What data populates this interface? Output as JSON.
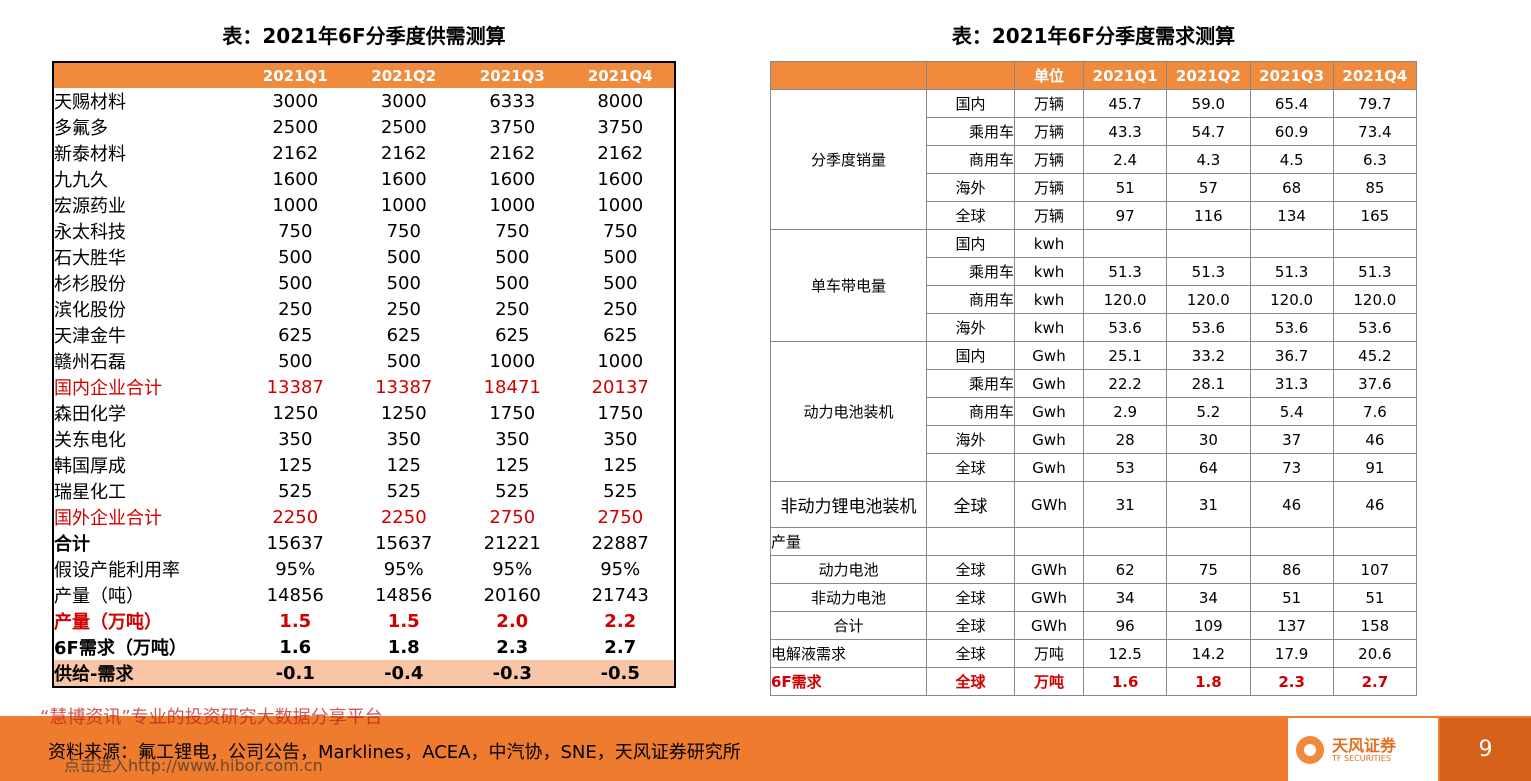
{
  "supply_table": {
    "title": "表：2021年6F分季度供需测算",
    "quarters": [
      "2021Q1",
      "2021Q2",
      "2021Q3",
      "2021Q4"
    ],
    "rows": [
      [
        "天赐材料",
        "3000",
        "3000",
        "6333",
        "8000"
      ],
      [
        "多氟多",
        "2500",
        "2500",
        "3750",
        "3750"
      ],
      [
        "新泰材料",
        "2162",
        "2162",
        "2162",
        "2162"
      ],
      [
        "九九久",
        "1600",
        "1600",
        "1600",
        "1600"
      ],
      [
        "宏源药业",
        "1000",
        "1000",
        "1000",
        "1000"
      ],
      [
        "永太科技",
        "750",
        "750",
        "750",
        "750"
      ],
      [
        "石大胜华",
        "500",
        "500",
        "500",
        "500"
      ],
      [
        "杉杉股份",
        "500",
        "500",
        "500",
        "500"
      ],
      [
        "滨化股份",
        "250",
        "250",
        "250",
        "250"
      ],
      [
        "天津金牛",
        "625",
        "625",
        "625",
        "625"
      ],
      [
        "赣州石磊",
        "500",
        "500",
        "1000",
        "1000"
      ],
      [
        "国内企业合计",
        "13387",
        "13387",
        "18471",
        "20137"
      ],
      [
        "森田化学",
        "1250",
        "1250",
        "1750",
        "1750"
      ],
      [
        "关东电化",
        "350",
        "350",
        "350",
        "350"
      ],
      [
        "韩国厚成",
        "125",
        "125",
        "125",
        "125"
      ],
      [
        "瑞星化工",
        "525",
        "525",
        "525",
        "525"
      ],
      [
        "国外企业合计",
        "2250",
        "2250",
        "2750",
        "2750"
      ],
      [
        "合计",
        "15637",
        "15637",
        "21221",
        "22887"
      ],
      [
        "假设产能利用率",
        "95%",
        "95%",
        "95%",
        "95%"
      ],
      [
        "产量（吨）",
        "14856",
        "14856",
        "20160",
        "21743"
      ],
      [
        "产量（万吨）",
        "1.5",
        "1.5",
        "2.0",
        "2.2"
      ],
      [
        "6F需求（万吨）",
        "1.6",
        "1.8",
        "2.3",
        "2.7"
      ],
      [
        "供给-需求",
        "-0.1",
        "-0.4",
        "-0.3",
        "-0.5"
      ]
    ]
  },
  "demand_table": {
    "title": "表：2021年6F分季度需求测算",
    "unit_header": "单位",
    "quarters": [
      "2021Q1",
      "2021Q2",
      "2021Q3",
      "2021Q4"
    ],
    "groups": [
      {
        "label": "分季度销量",
        "rows": [
          [
            "国内",
            "万辆",
            "45.7",
            "59.0",
            "65.4",
            "79.7"
          ],
          [
            "乘用车",
            "万辆",
            "43.3",
            "54.7",
            "60.9",
            "73.4"
          ],
          [
            "商用车",
            "万辆",
            "2.4",
            "4.3",
            "4.5",
            "6.3"
          ],
          [
            "海外",
            "万辆",
            "51",
            "57",
            "68",
            "85"
          ],
          [
            "全球",
            "万辆",
            "97",
            "116",
            "134",
            "165"
          ]
        ]
      },
      {
        "label": "单车带电量",
        "rows": [
          [
            "国内",
            "kwh",
            null,
            null,
            null,
            null
          ],
          [
            "乘用车",
            "kwh",
            "51.3",
            "51.3",
            "51.3",
            "51.3"
          ],
          [
            "商用车",
            "kwh",
            "120.0",
            "120.0",
            "120.0",
            "120.0"
          ],
          [
            "海外",
            "kwh",
            "53.6",
            "53.6",
            "53.6",
            "53.6"
          ]
        ]
      },
      {
        "label": "动力电池装机",
        "rows": [
          [
            "国内",
            "Gwh",
            "25.1",
            "33.2",
            "36.7",
            "45.2"
          ],
          [
            "乘用车",
            "Gwh",
            "22.2",
            "28.1",
            "31.3",
            "37.6"
          ],
          [
            "商用车",
            "Gwh",
            "2.9",
            "5.2",
            "5.4",
            "7.6"
          ],
          [
            "海外",
            "Gwh",
            "28",
            "30",
            "37",
            "46"
          ],
          [
            "全球",
            "Gwh",
            "53",
            "64",
            "73",
            "91"
          ]
        ]
      },
      {
        "label": "非动力锂电池装机",
        "rows": [
          [
            "全球",
            "GWh",
            "31",
            "31",
            "46",
            "46"
          ]
        ]
      }
    ],
    "rows": [
      [
        "产量",
        null,
        null,
        null,
        null,
        null,
        null
      ],
      [
        "动力电池",
        "全球",
        "GWh",
        "62",
        "75",
        "86",
        "107"
      ],
      [
        "非动力电池",
        "全球",
        "GWh",
        "34",
        "34",
        "51",
        "51"
      ],
      [
        "合计",
        "全球",
        "GWh",
        "96",
        "109",
        "137",
        "158"
      ],
      [
        "电解液需求",
        "全球",
        "万吨",
        "12.5",
        "14.2",
        "17.9",
        "20.6"
      ],
      [
        "6F需求",
        "全球",
        "万吨",
        "1.6",
        "1.8",
        "2.3",
        "2.7"
      ]
    ]
  },
  "footer": {
    "watermark": "“慧博资讯”专业的投资研究大数据分享平台",
    "source": "资料来源：氟工锂电，公司公告，Marklines，ACEA，中汽协，SNE，天风证券研究所",
    "link": "点击进入http://www.hibor.com.cn",
    "logo": "天风证券",
    "logo_en": "TF SECURITIES",
    "page": "9"
  }
}
